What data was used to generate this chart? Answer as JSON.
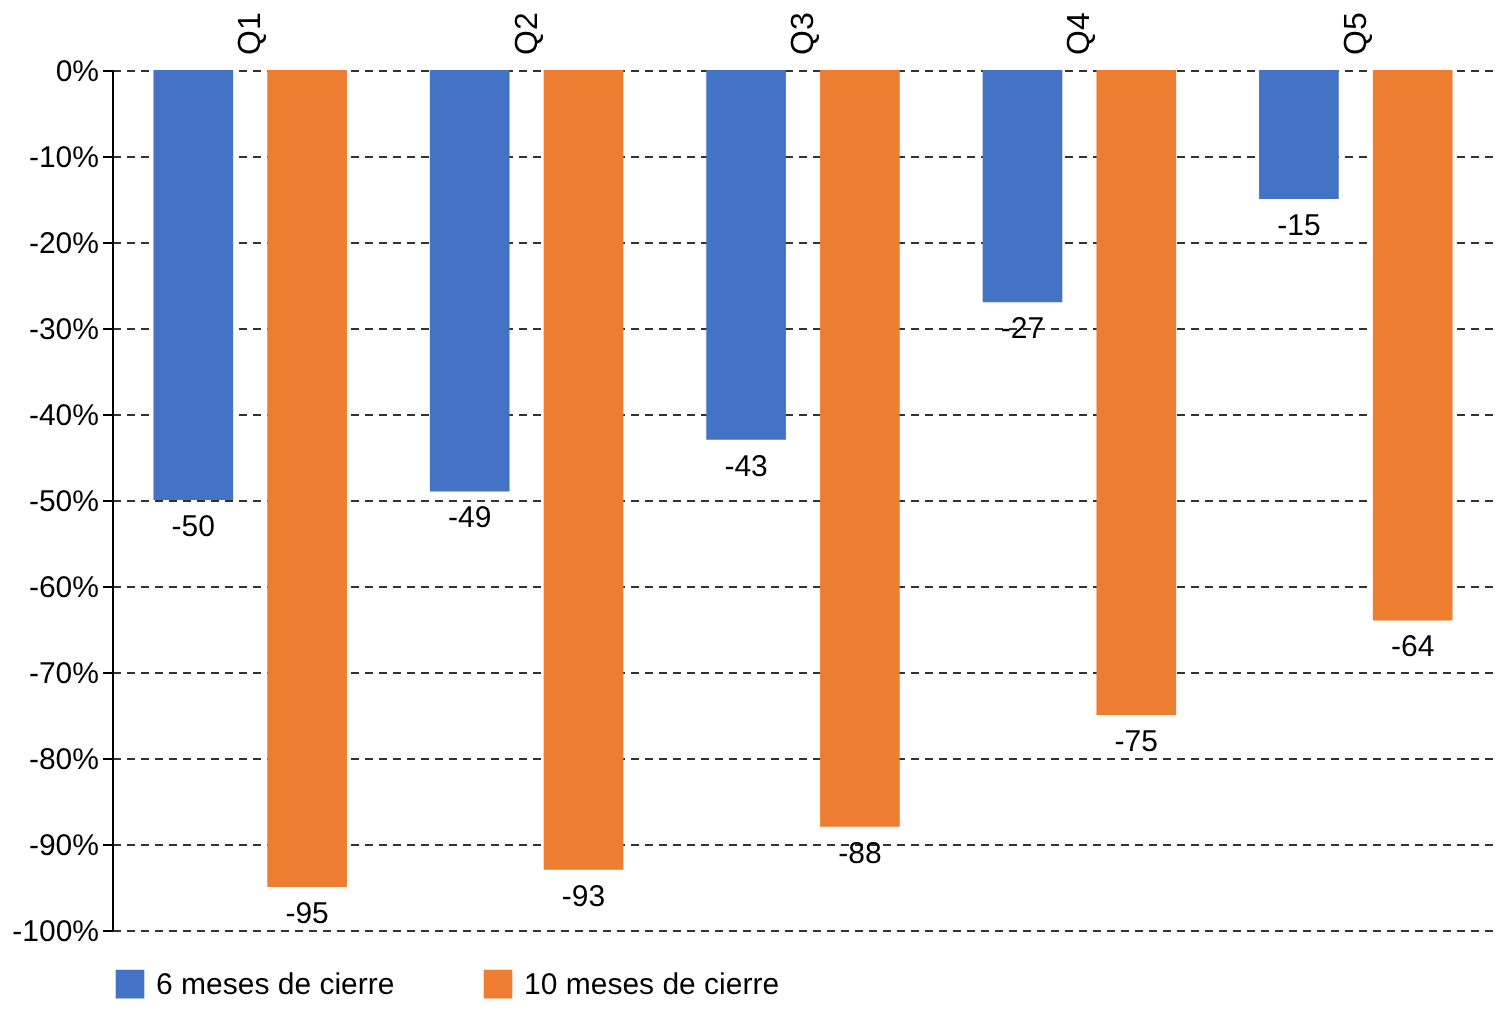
{
  "chart_data": {
    "type": "bar",
    "categories": [
      "Q1",
      "Q2",
      "Q3",
      "Q4",
      "Q5"
    ],
    "series": [
      {
        "name": "6 meses de cierre",
        "color": "#4472c4",
        "values": [
          -50,
          -49,
          -43,
          -27,
          -15
        ]
      },
      {
        "name": "10 meses de cierre",
        "color": "#ed7d31",
        "values": [
          -95,
          -93,
          -88,
          -75,
          -64
        ]
      }
    ],
    "ylim": [
      -100,
      0
    ],
    "yticks": [
      {
        "value": 0,
        "label": "0%"
      },
      {
        "value": -10,
        "label": "-10%"
      },
      {
        "value": -20,
        "label": "-20%"
      },
      {
        "value": -30,
        "label": "-30%"
      },
      {
        "value": -40,
        "label": "-40%"
      },
      {
        "value": -50,
        "label": "-50%"
      },
      {
        "value": -60,
        "label": "-60%"
      },
      {
        "value": -70,
        "label": "-70%"
      },
      {
        "value": -80,
        "label": "-80%"
      },
      {
        "value": -90,
        "label": "-90%"
      },
      {
        "value": -100,
        "label": "-100%"
      }
    ],
    "grid": "y",
    "legend": "bottom",
    "data_labels": true
  }
}
